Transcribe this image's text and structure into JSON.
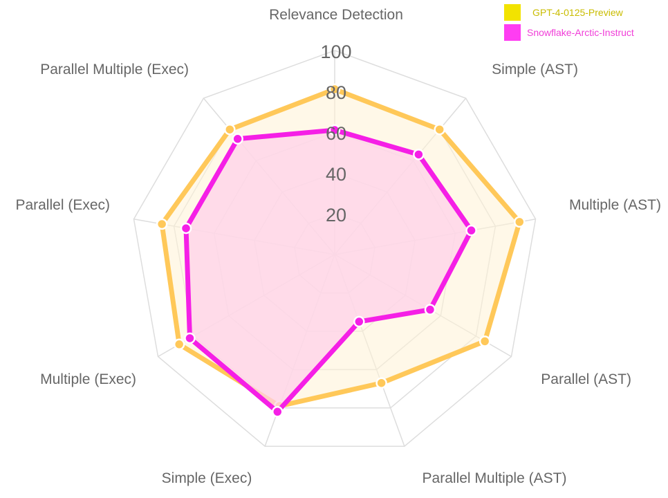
{
  "chart_data": {
    "type": "radar",
    "axes": [
      "Relevance Detection",
      "Simple (AST)",
      "Multiple (AST)",
      "Parallel (AST)",
      "Parallel Multiple (AST)",
      "Simple (Exec)",
      "Multiple (Exec)",
      "Parallel (Exec)",
      "Parallel Multiple (Exec)"
    ],
    "r_range": [
      0,
      100
    ],
    "ticks": [
      20,
      40,
      60,
      80,
      100
    ],
    "series": [
      {
        "name": "GPT-4-0125-Preview",
        "values": [
          81,
          80,
          92,
          85,
          67,
          79,
          88,
          86,
          80
        ],
        "stroke": "#FFC859",
        "fill": "#FFF3D6",
        "legend_color": "#F2E300",
        "legend_text_color": "#C9BC00"
      },
      {
        "name": "Snowflake-Arctic-Instruct",
        "values": [
          61,
          64,
          68,
          54,
          35,
          82,
          82,
          74,
          74
        ],
        "stroke": "#F51FE6",
        "fill": "#FFD2EA",
        "legend_color": "#FF3DF2",
        "legend_text_color": "#F03DD8"
      }
    ],
    "grid": true,
    "legend_position": "top-right"
  }
}
